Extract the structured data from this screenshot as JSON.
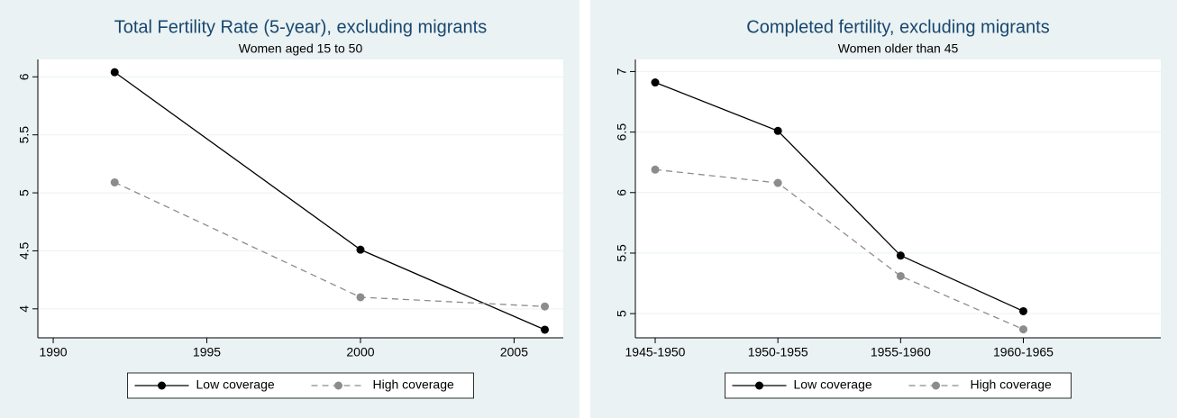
{
  "chart_data": [
    {
      "type": "line",
      "title": "Total Fertility Rate (5-year), excluding migrants",
      "subtitle": "Women aged 15 to 50",
      "x": [
        1992,
        2000,
        2006
      ],
      "series": [
        {
          "name": "Low coverage",
          "color": "#000000",
          "dash": false,
          "values": [
            6.04,
            4.51,
            3.82
          ]
        },
        {
          "name": "High coverage",
          "color": "#8c8c8c",
          "dash": true,
          "values": [
            5.09,
            4.1,
            4.02
          ]
        }
      ],
      "xlim": [
        1989.5,
        2006.6
      ],
      "xticks": [
        1990,
        1995,
        2000,
        2005
      ],
      "ylim": [
        3.75,
        6.15
      ],
      "yticks": [
        4,
        4.5,
        5,
        5.5,
        6
      ],
      "grid": true,
      "legend": "bottom"
    },
    {
      "type": "line",
      "title": "Completed fertility, excluding migrants",
      "subtitle": "Women older than 45",
      "categories": [
        "1945-1950",
        "1950-1955",
        "1955-1960",
        "1960-1965"
      ],
      "series": [
        {
          "name": "Low coverage",
          "color": "#000000",
          "dash": false,
          "values": [
            6.91,
            6.51,
            5.48,
            5.02
          ]
        },
        {
          "name": "High coverage",
          "color": "#8c8c8c",
          "dash": true,
          "values": [
            6.19,
            6.08,
            5.31,
            4.87
          ]
        }
      ],
      "ylim": [
        4.8,
        7.1
      ],
      "yticks": [
        5,
        5.5,
        6,
        6.5,
        7
      ],
      "grid": true,
      "legend": "bottom"
    }
  ]
}
